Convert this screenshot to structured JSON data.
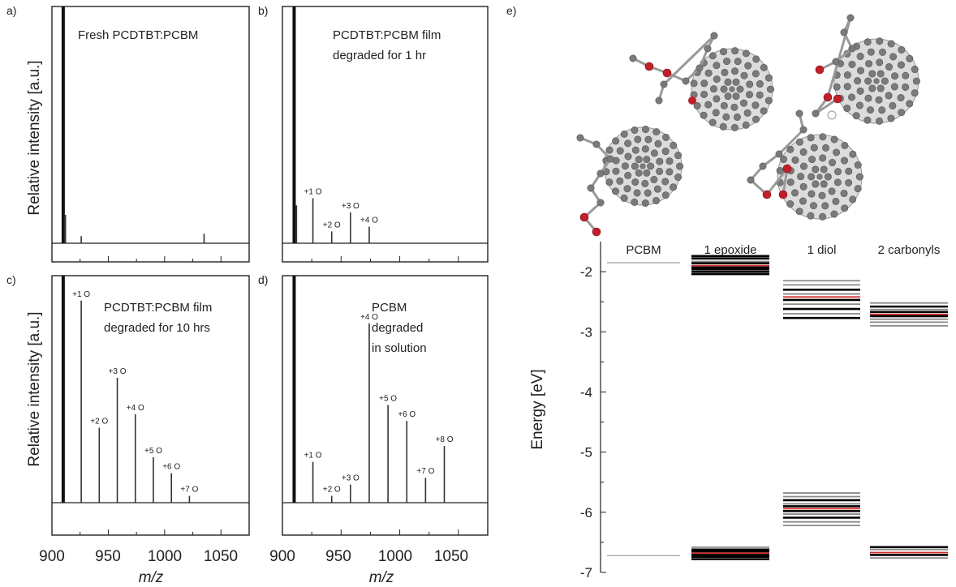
{
  "panel_letters": {
    "a": "a)",
    "b": "b)",
    "c": "c)",
    "d": "d)",
    "e": "e)"
  },
  "ms_axes": {
    "ylabel": "Relative intensity [a.u.]",
    "xlabel": "m/z",
    "xticks": [
      "900",
      "950",
      "1000",
      "1050"
    ]
  },
  "energy_axes": {
    "ylabel": "Energy [eV]",
    "yticks": [
      "-2",
      "-3",
      "-4",
      "-5",
      "-6",
      "-7"
    ]
  },
  "chart_data": [
    {
      "type": "bar",
      "panel": "a",
      "annotation": [
        "Fresh PCDTBT:PCBM"
      ],
      "xlim": [
        900,
        1075
      ],
      "ylim": [
        0,
        1
      ],
      "peaks": [
        {
          "x": 910,
          "y": 1.0,
          "label": ""
        },
        {
          "x": 912,
          "y": 0.12,
          "label": ""
        },
        {
          "x": 926,
          "y": 0.03,
          "label": ""
        },
        {
          "x": 1035,
          "y": 0.04,
          "label": ""
        }
      ]
    },
    {
      "type": "bar",
      "panel": "b",
      "annotation": [
        "PCDTBT:PCBM film",
        "degraded for 1 hr"
      ],
      "xlim": [
        900,
        1075
      ],
      "ylim": [
        0,
        1
      ],
      "peaks": [
        {
          "x": 910,
          "y": 1.0,
          "label": ""
        },
        {
          "x": 912,
          "y": 0.16,
          "label": ""
        },
        {
          "x": 926,
          "y": 0.19,
          "label": "+1 O"
        },
        {
          "x": 942,
          "y": 0.05,
          "label": "+2 O"
        },
        {
          "x": 958,
          "y": 0.13,
          "label": "+3 O"
        },
        {
          "x": 974,
          "y": 0.07,
          "label": "+4 O"
        }
      ]
    },
    {
      "type": "bar",
      "panel": "c",
      "annotation": [
        "PCDTBT:PCBM film",
        "degraded for 10 hrs"
      ],
      "xlim": [
        900,
        1075
      ],
      "ylim": [
        0,
        1
      ],
      "peaks": [
        {
          "x": 910,
          "y": 1.0,
          "label": ""
        },
        {
          "x": 926,
          "y": 0.89,
          "label": "+1 O"
        },
        {
          "x": 942,
          "y": 0.33,
          "label": "+2 O"
        },
        {
          "x": 958,
          "y": 0.55,
          "label": "+3 O"
        },
        {
          "x": 974,
          "y": 0.39,
          "label": "+4 O"
        },
        {
          "x": 990,
          "y": 0.2,
          "label": "+5 O"
        },
        {
          "x": 1006,
          "y": 0.13,
          "label": "+6 O"
        },
        {
          "x": 1022,
          "y": 0.03,
          "label": "+7 O"
        }
      ]
    },
    {
      "type": "bar",
      "panel": "d",
      "annotation": [
        "PCBM",
        "degraded",
        "in solution"
      ],
      "xlim": [
        900,
        1075
      ],
      "ylim": [
        0,
        1
      ],
      "peaks": [
        {
          "x": 910,
          "y": 1.0,
          "label": ""
        },
        {
          "x": 926,
          "y": 0.18,
          "label": "+1 O"
        },
        {
          "x": 942,
          "y": 0.03,
          "label": "+2 O"
        },
        {
          "x": 958,
          "y": 0.08,
          "label": "+3 O"
        },
        {
          "x": 974,
          "y": 0.79,
          "label": "+4 O"
        },
        {
          "x": 990,
          "y": 0.43,
          "label": "+5 O"
        },
        {
          "x": 1006,
          "y": 0.36,
          "label": "+6 O"
        },
        {
          "x": 1022,
          "y": 0.11,
          "label": "+7 O"
        },
        {
          "x": 1038,
          "y": 0.25,
          "label": "+8 O"
        }
      ]
    },
    {
      "type": "energy-level",
      "panel": "e",
      "ylabel": "Energy [eV]",
      "ylim": [
        -7,
        -1.5
      ],
      "colors": {
        "black": "#000000",
        "gray": "#8a8a8a",
        "red": "#d42a2a"
      },
      "columns": [
        {
          "name": "PCBM",
          "levels": [
            {
              "e": -1.85,
              "c": "gray"
            },
            {
              "e": -6.72,
              "c": "gray"
            }
          ]
        },
        {
          "name": "1 epoxide",
          "levels": [
            {
              "e": -1.74,
              "c": "black"
            },
            {
              "e": -1.78,
              "c": "black"
            },
            {
              "e": -1.83,
              "c": "gray"
            },
            {
              "e": -1.86,
              "c": "black"
            },
            {
              "e": -1.9,
              "c": "red"
            },
            {
              "e": -1.93,
              "c": "black"
            },
            {
              "e": -1.96,
              "c": "black"
            },
            {
              "e": -2.0,
              "c": "black"
            },
            {
              "e": -2.04,
              "c": "black"
            },
            {
              "e": -6.58,
              "c": "gray"
            },
            {
              "e": -6.62,
              "c": "black"
            },
            {
              "e": -6.65,
              "c": "black"
            },
            {
              "e": -6.68,
              "c": "red"
            },
            {
              "e": -6.71,
              "c": "black"
            },
            {
              "e": -6.74,
              "c": "black"
            },
            {
              "e": -6.78,
              "c": "black"
            }
          ]
        },
        {
          "name": "1 diol",
          "levels": [
            {
              "e": -2.15,
              "c": "gray"
            },
            {
              "e": -2.22,
              "c": "gray"
            },
            {
              "e": -2.3,
              "c": "black"
            },
            {
              "e": -2.37,
              "c": "gray"
            },
            {
              "e": -2.42,
              "c": "red"
            },
            {
              "e": -2.47,
              "c": "black"
            },
            {
              "e": -2.54,
              "c": "gray"
            },
            {
              "e": -2.62,
              "c": "black"
            },
            {
              "e": -2.7,
              "c": "gray"
            },
            {
              "e": -2.77,
              "c": "black"
            },
            {
              "e": -5.68,
              "c": "gray"
            },
            {
              "e": -5.74,
              "c": "gray"
            },
            {
              "e": -5.8,
              "c": "black"
            },
            {
              "e": -5.86,
              "c": "gray"
            },
            {
              "e": -5.9,
              "c": "black"
            },
            {
              "e": -5.94,
              "c": "red"
            },
            {
              "e": -5.98,
              "c": "black"
            },
            {
              "e": -6.03,
              "c": "gray"
            },
            {
              "e": -6.09,
              "c": "black"
            },
            {
              "e": -6.16,
              "c": "gray"
            },
            {
              "e": -6.22,
              "c": "gray"
            }
          ]
        },
        {
          "name": "2 carbonyls",
          "levels": [
            {
              "e": -2.52,
              "c": "gray"
            },
            {
              "e": -2.58,
              "c": "black"
            },
            {
              "e": -2.63,
              "c": "gray"
            },
            {
              "e": -2.67,
              "c": "black"
            },
            {
              "e": -2.71,
              "c": "red"
            },
            {
              "e": -2.74,
              "c": "black"
            },
            {
              "e": -2.79,
              "c": "gray"
            },
            {
              "e": -2.84,
              "c": "gray"
            },
            {
              "e": -2.9,
              "c": "gray"
            },
            {
              "e": -6.58,
              "c": "black"
            },
            {
              "e": -6.62,
              "c": "gray"
            },
            {
              "e": -6.67,
              "c": "red"
            },
            {
              "e": -6.71,
              "c": "black"
            },
            {
              "e": -6.76,
              "c": "gray"
            }
          ]
        }
      ]
    }
  ]
}
